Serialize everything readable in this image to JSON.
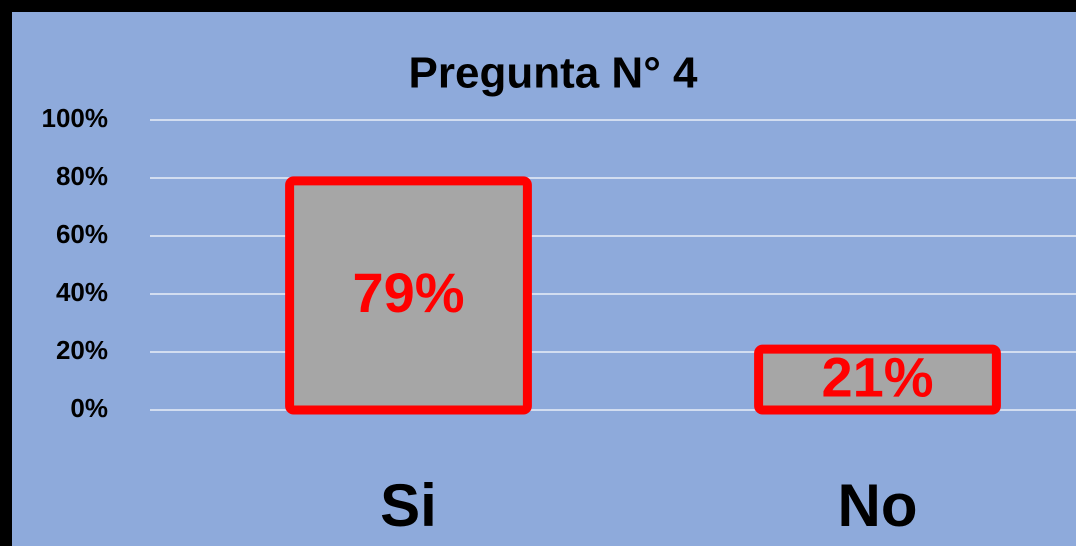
{
  "chart_data": {
    "type": "bar",
    "title": "Pregunta N° 4",
    "categories": [
      "Si",
      "No"
    ],
    "values": [
      79,
      21
    ],
    "value_labels": [
      "79%",
      "21%"
    ],
    "color": "#a6a6a6",
    "edge_color": "#ff0000",
    "label_color": "#ff0000",
    "ylim": [
      0,
      100
    ],
    "yticks": [
      {
        "value": 0,
        "label": "0%"
      },
      {
        "value": 20,
        "label": "20%"
      },
      {
        "value": 40,
        "label": "40%"
      },
      {
        "value": 60,
        "label": "60%"
      },
      {
        "value": 80,
        "label": "80%"
      },
      {
        "value": 100,
        "label": "100%"
      }
    ],
    "grid": true
  }
}
